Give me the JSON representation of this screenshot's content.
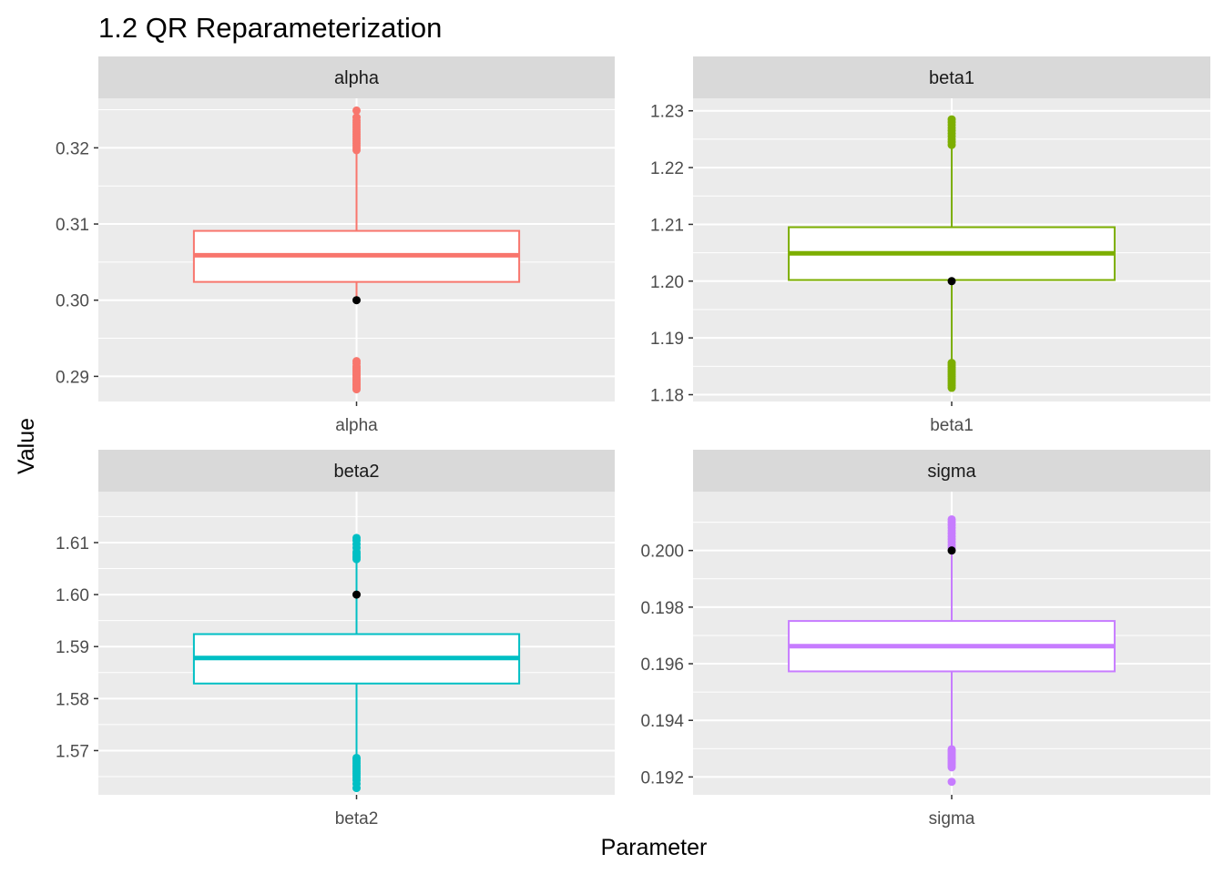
{
  "chart_data": {
    "type": "boxplot",
    "title": "1.2 QR Reparameterization",
    "xlabel": "Parameter",
    "ylabel": "Value",
    "facet_scales": "free",
    "legend": "none",
    "grid": true,
    "reference_point_color": "#000000",
    "panels": [
      {
        "strip": "alpha",
        "category": "alpha",
        "color": "#F8766D",
        "ylim": [
          0.2867,
          0.3265
        ],
        "ticks": [
          0.29,
          0.3,
          0.31,
          0.32
        ],
        "tick_labels": [
          "0.29",
          "0.30",
          "0.31",
          "0.32"
        ],
        "box": {
          "q1": 0.3024,
          "median": 0.3059,
          "q3": 0.3091,
          "whisker_low": 0.3001,
          "whisker_high": 0.3196
        },
        "outliers_high": [
          0.3197,
          0.32,
          0.3203,
          0.3206,
          0.3209,
          0.3212,
          0.3215,
          0.3218,
          0.3221,
          0.3224,
          0.3227,
          0.323,
          0.3233,
          0.3236,
          0.324,
          0.3249
        ],
        "outliers_low": [
          0.2883,
          0.2885,
          0.2887,
          0.2889,
          0.2891,
          0.2893,
          0.2895,
          0.2897,
          0.2899,
          0.2901,
          0.2903,
          0.2905,
          0.2907,
          0.2909,
          0.2911,
          0.2913,
          0.2917,
          0.292
        ],
        "reference_value": 0.3
      },
      {
        "strip": "beta1",
        "category": "beta1",
        "color": "#7CAE00",
        "ylim": [
          1.1788,
          1.2322
        ],
        "ticks": [
          1.18,
          1.19,
          1.2,
          1.21,
          1.22,
          1.23
        ],
        "tick_labels": [
          "1.18",
          "1.19",
          "1.20",
          "1.21",
          "1.22",
          "1.23"
        ],
        "box": {
          "q1": 1.2002,
          "median": 1.2049,
          "q3": 1.2095,
          "whisker_low": 1.186,
          "whisker_high": 1.2238
        },
        "outliers_high": [
          1.224,
          1.2245,
          1.225,
          1.2255,
          1.226,
          1.2265,
          1.227,
          1.2275,
          1.228,
          1.2285
        ],
        "outliers_low": [
          1.1812,
          1.1816,
          1.182,
          1.1824,
          1.1828,
          1.1832,
          1.1836,
          1.184,
          1.1844,
          1.1848,
          1.1852,
          1.1856
        ],
        "reference_value": 1.2
      },
      {
        "strip": "beta2",
        "category": "beta2",
        "color": "#00BFC4",
        "ylim": [
          1.5615,
          1.6198
        ],
        "ticks": [
          1.57,
          1.58,
          1.59,
          1.6,
          1.61
        ],
        "tick_labels": [
          "1.57",
          "1.58",
          "1.59",
          "1.60",
          "1.61"
        ],
        "box": {
          "q1": 1.5829,
          "median": 1.5878,
          "q3": 1.5924,
          "whisker_low": 1.5688,
          "whisker_high": 1.6066
        },
        "outliers_high": [
          1.6068,
          1.6071,
          1.6074,
          1.6078,
          1.6082,
          1.609,
          1.6097,
          1.6104,
          1.6109
        ],
        "outliers_low": [
          1.5628,
          1.5636,
          1.5643,
          1.5648,
          1.5652,
          1.5656,
          1.566,
          1.5664,
          1.5668,
          1.5672,
          1.5676,
          1.568,
          1.5684,
          1.5686
        ],
        "reference_value": 1.6
      },
      {
        "strip": "sigma",
        "category": "sigma",
        "color": "#C77CFF",
        "ylim": [
          0.19137,
          0.20208
        ],
        "ticks": [
          0.192,
          0.194,
          0.196,
          0.198,
          0.2
        ],
        "tick_labels": [
          "0.192",
          "0.194",
          "0.196",
          "0.198",
          "0.200"
        ],
        "box": {
          "q1": 0.19573,
          "median": 0.19662,
          "q3": 0.19751,
          "whisker_low": 0.19305,
          "whisker_high": 0.20008
        },
        "outliers_high": [
          0.2001,
          0.2002,
          0.2003,
          0.2004,
          0.2005,
          0.2006,
          0.2007,
          0.2008,
          0.2009,
          0.201,
          0.2011
        ],
        "outliers_low": [
          0.19234,
          0.1924,
          0.19246,
          0.19252,
          0.19258,
          0.19264,
          0.1927,
          0.19276,
          0.19282,
          0.19288,
          0.19294,
          0.19298,
          0.19183
        ],
        "reference_value": 0.2
      }
    ]
  }
}
